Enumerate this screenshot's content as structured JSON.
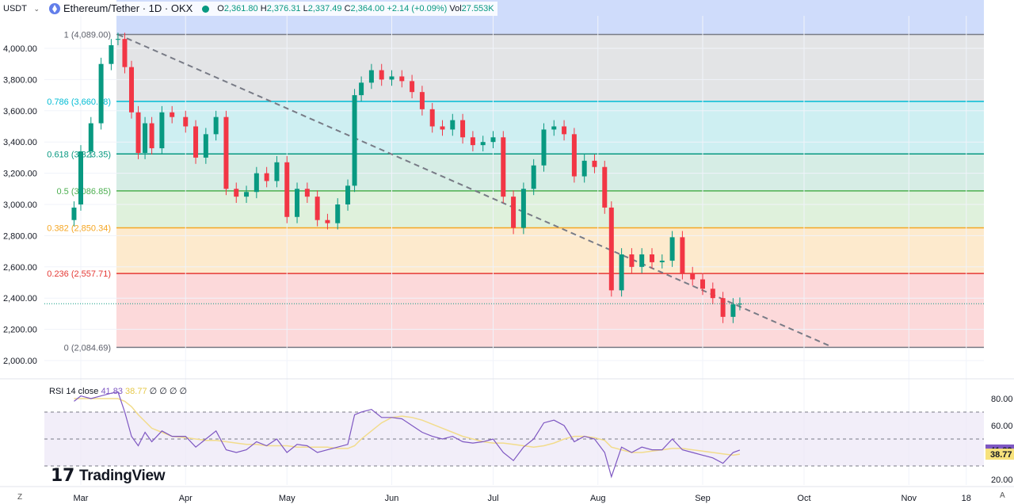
{
  "header": {
    "currency": "USDT",
    "symbol_title": "Ethereum/Tether · 1D · OKX",
    "open_label": "O",
    "open": "2,361.80",
    "high_label": "H",
    "high": "2,376.31",
    "low_label": "L",
    "low": "2,337.49",
    "close_label": "C",
    "close": "2,364.00",
    "change": "+2.14 (+0.09%)",
    "vol_label": "Vol",
    "vol": "27.553K"
  },
  "rsi_legend": {
    "name": "RSI 14 close",
    "rsi": "41.83",
    "ma": "38.77",
    "extras": "∅ ∅ ∅ ∅"
  },
  "watermark": "TradingView",
  "corner_left": "Z",
  "corner_right": "A",
  "colors": {
    "up": "#089981",
    "down": "#f23645",
    "rsi_line": "#7e57c2",
    "rsi_ma": "#f2dc8c",
    "trendline": "#787b86"
  },
  "chart_data": [
    {
      "type": "candlestick",
      "price_axis": {
        "ticks": [
          2000,
          2200,
          2400,
          2600,
          2800,
          3000,
          3200,
          3400,
          3600,
          3800,
          4000
        ],
        "tick_labels": [
          "2,000.00",
          "2,200.00",
          "2,400.00",
          "2,600.00",
          "2,800.00",
          "3,000.00",
          "3,200.00",
          "3,400.00",
          "3,600.00",
          "3,800.00",
          "4,000.00"
        ]
      },
      "time_axis": {
        "labels": [
          "Mar",
          "Apr",
          "May",
          "Jun",
          "Jul",
          "Aug",
          "Sep",
          "Oct",
          "Nov",
          "18"
        ],
        "dates": [
          "2024-03-01",
          "2024-04-01",
          "2024-05-01",
          "2024-06-01",
          "2024-07-01",
          "2024-08-01",
          "2024-09-01",
          "2024-10-01",
          "2024-11-01",
          "2024-11-18"
        ]
      },
      "fib_levels": [
        {
          "label": "1 (4,089.00)",
          "value": 4089.0,
          "line": "#787b86",
          "fill": "#dedfe2"
        },
        {
          "label": "0.786 (3,660.08)",
          "value": 3660.08,
          "line": "#00bcd4",
          "fill": "#c5ecf0"
        },
        {
          "label": "0.618 (3,323.35)",
          "value": 3323.35,
          "line": "#089981",
          "fill": "#cfeae0"
        },
        {
          "label": "0.5 (3,086.85)",
          "value": 3086.85,
          "line": "#4caf50",
          "fill": "#d9efd6"
        },
        {
          "label": "0.382 (2,850.34)",
          "value": 2850.34,
          "line": "#f5a623",
          "fill": "#fde6c4"
        },
        {
          "label": "0.236 (2,557.71)",
          "value": 2557.71,
          "line": "#e53935",
          "fill": "#fbd2d3"
        },
        {
          "label": "0 (2,084.69)",
          "value": 2084.69,
          "line": "#787b86",
          "fill": ""
        }
      ],
      "fib_top_band_color": "#cfdcfb",
      "trendline": {
        "from": {
          "date": "2024-03-12",
          "price": 4089
        },
        "to": {
          "date": "2024-10-09",
          "price": 2090
        }
      },
      "current_price": 2364.0,
      "series": [
        {
          "name": "ETH/USDT",
          "x": [
            "2024-02-28",
            "2024-03-01",
            "2024-03-04",
            "2024-03-07",
            "2024-03-10",
            "2024-03-12",
            "2024-03-14",
            "2024-03-16",
            "2024-03-18",
            "2024-03-20",
            "2024-03-22",
            "2024-03-25",
            "2024-03-28",
            "2024-04-01",
            "2024-04-04",
            "2024-04-07",
            "2024-04-10",
            "2024-04-13",
            "2024-04-16",
            "2024-04-19",
            "2024-04-22",
            "2024-04-25",
            "2024-04-28",
            "2024-05-01",
            "2024-05-04",
            "2024-05-07",
            "2024-05-10",
            "2024-05-13",
            "2024-05-16",
            "2024-05-19",
            "2024-05-21",
            "2024-05-23",
            "2024-05-26",
            "2024-05-29",
            "2024-06-01",
            "2024-06-04",
            "2024-06-07",
            "2024-06-10",
            "2024-06-13",
            "2024-06-16",
            "2024-06-19",
            "2024-06-22",
            "2024-06-25",
            "2024-06-28",
            "2024-07-01",
            "2024-07-04",
            "2024-07-07",
            "2024-07-10",
            "2024-07-13",
            "2024-07-16",
            "2024-07-19",
            "2024-07-22",
            "2024-07-25",
            "2024-07-28",
            "2024-07-31",
            "2024-08-03",
            "2024-08-05",
            "2024-08-08",
            "2024-08-11",
            "2024-08-14",
            "2024-08-17",
            "2024-08-20",
            "2024-08-23",
            "2024-08-26",
            "2024-08-29",
            "2024-09-01",
            "2024-09-04",
            "2024-09-07",
            "2024-09-10",
            "2024-09-12"
          ],
          "close": [
            2980,
            3340,
            3520,
            3900,
            4020,
            4060,
            3880,
            3590,
            3330,
            3520,
            3360,
            3590,
            3560,
            3500,
            3300,
            3450,
            3560,
            3100,
            3050,
            3080,
            3200,
            3150,
            3270,
            2920,
            3100,
            3050,
            2900,
            2880,
            3000,
            3120,
            3700,
            3780,
            3860,
            3800,
            3820,
            3790,
            3720,
            3610,
            3500,
            3480,
            3540,
            3430,
            3380,
            3400,
            3430,
            3050,
            2850,
            3100,
            3250,
            3480,
            3500,
            3450,
            3180,
            3280,
            3240,
            2980,
            2450,
            2680,
            2600,
            2680,
            2630,
            2640,
            2790,
            2560,
            2520,
            2460,
            2400,
            2280,
            2360,
            2364
          ],
          "open": [
            2900,
            3000,
            3340,
            3520,
            3900,
            4060,
            4060,
            3880,
            3590,
            3330,
            3520,
            3360,
            3590,
            3560,
            3500,
            3300,
            3450,
            3560,
            3100,
            3050,
            3080,
            3200,
            3150,
            3270,
            2920,
            3100,
            3050,
            2900,
            2880,
            3000,
            3120,
            3700,
            3780,
            3860,
            3800,
            3820,
            3790,
            3720,
            3610,
            3500,
            3480,
            3540,
            3430,
            3380,
            3400,
            3430,
            3050,
            2850,
            3100,
            3250,
            3480,
            3500,
            3450,
            3180,
            3280,
            3240,
            2980,
            2450,
            2680,
            2600,
            2680,
            2630,
            2640,
            2790,
            2560,
            2520,
            2460,
            2400,
            2280,
            2361.8
          ]
        }
      ]
    },
    {
      "type": "line",
      "indicator": "RSI 14 close",
      "y_axis": {
        "ticks": [
          20,
          40,
          60,
          80
        ],
        "tick_labels": [
          "20.00",
          "40.00",
          "60.00",
          "80.00"
        ]
      },
      "bands": [
        70,
        50,
        30
      ],
      "current_rsi": 41.83,
      "current_ma": 38.77,
      "series": [
        {
          "name": "RSI",
          "values": [
            78,
            82,
            80,
            82,
            84,
            85,
            70,
            52,
            45,
            55,
            48,
            56,
            52,
            52,
            44,
            50,
            56,
            42,
            40,
            42,
            48,
            45,
            50,
            40,
            46,
            45,
            40,
            42,
            44,
            46,
            68,
            70,
            72,
            66,
            66,
            65,
            60,
            55,
            52,
            50,
            52,
            48,
            47,
            48,
            50,
            40,
            34,
            44,
            50,
            62,
            64,
            60,
            48,
            52,
            50,
            40,
            22,
            44,
            40,
            44,
            42,
            42,
            50,
            42,
            40,
            38,
            36,
            32,
            40,
            41.83
          ]
        },
        {
          "name": "RSI-based MA",
          "values": [
            80,
            80,
            80,
            80,
            80,
            80,
            78,
            74,
            68,
            63,
            58,
            55,
            52,
            51,
            50,
            49,
            49,
            48,
            47,
            46,
            46,
            45,
            45,
            45,
            44,
            44,
            44,
            44,
            43,
            43,
            45,
            50,
            56,
            62,
            66,
            67,
            66,
            64,
            61,
            58,
            55,
            52,
            50,
            48,
            47,
            47,
            46,
            45,
            44,
            45,
            47,
            50,
            52,
            52,
            51,
            49,
            44,
            42,
            40,
            40,
            41,
            42,
            43,
            43,
            42,
            41,
            40,
            39,
            38,
            38.77
          ]
        }
      ]
    }
  ]
}
